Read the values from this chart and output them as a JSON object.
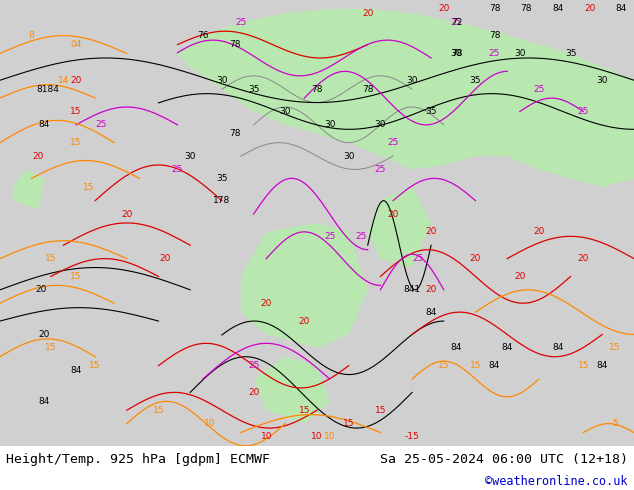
{
  "title_left": "Height/Temp. 925 hPa [gdpm] ECMWF",
  "title_right": "Sa 25-05-2024 06:00 UTC (12+18)",
  "credit": "©weatheronline.co.uk",
  "bg_color": "#d3d3d3",
  "map_bg_color": "#d3d3d3",
  "land_color": "#c8c8c8",
  "highlight_green": "#b8e8b0",
  "fig_width": 6.34,
  "fig_height": 4.9,
  "dpi": 100,
  "title_fontsize": 9.5,
  "credit_fontsize": 8.5,
  "credit_color": "#0000cc",
  "title_color": "#000000",
  "bottom_bar_color": "#ffffff"
}
